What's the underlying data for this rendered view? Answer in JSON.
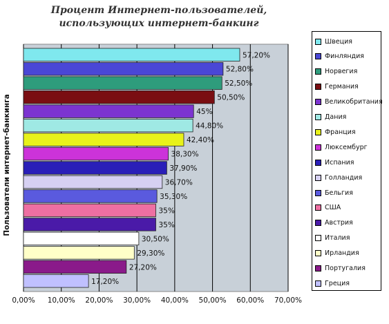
{
  "chart_data": {
    "type": "bar",
    "orientation": "horizontal",
    "title": "Процент Интернет-пользователей, использующих интернет-банкинг",
    "xlabel": "",
    "ylabel": "Пользователи интернет-банкинга",
    "xlim": [
      0,
      70
    ],
    "grid": true,
    "legend_placement": "right",
    "x_ticks": [
      "0,00%",
      "10,00%",
      "20,00%",
      "30,00%",
      "40,00%",
      "50,00%",
      "60,00%",
      "70,00%"
    ],
    "categories": [
      "Швеция",
      "Финляндия",
      "Норвегия",
      "Германия",
      "Великобритания",
      "Дания",
      "Франция",
      "Люксембург",
      "Испания",
      "Голландия",
      "Бельгия",
      "США",
      "Австрия",
      "Италия",
      "Ирландия",
      "Португалия",
      "Греция"
    ],
    "values": [
      57.2,
      52.8,
      52.5,
      50.5,
      45,
      44.8,
      42.4,
      38.3,
      37.9,
      36.7,
      35.3,
      35,
      35,
      30.5,
      29.3,
      27.2,
      17.2
    ],
    "value_labels": [
      "57,20%",
      "52,80%",
      "52,50%",
      "50,50%",
      "45%",
      "44,80%",
      "42,40%",
      "38,30%",
      "37,90%",
      "36,70%",
      "35,30%",
      "35%",
      "35%",
      "30,50%",
      "29,30%",
      "27,20%",
      "17,20%"
    ],
    "colors": [
      "#7FE8EE",
      "#4A47D6",
      "#2E9C7C",
      "#7A0E12",
      "#7C34D0",
      "#9FE9E4",
      "#E8F21A",
      "#CC33D9",
      "#2A1FB8",
      "#D6D0F2",
      "#5A5ADE",
      "#EE6FA2",
      "#4A1AA8",
      "#FFFFFF",
      "#FFFFC8",
      "#8A1A8A",
      "#C0C0FF"
    ],
    "plot_background": "#C8D0D8"
  }
}
